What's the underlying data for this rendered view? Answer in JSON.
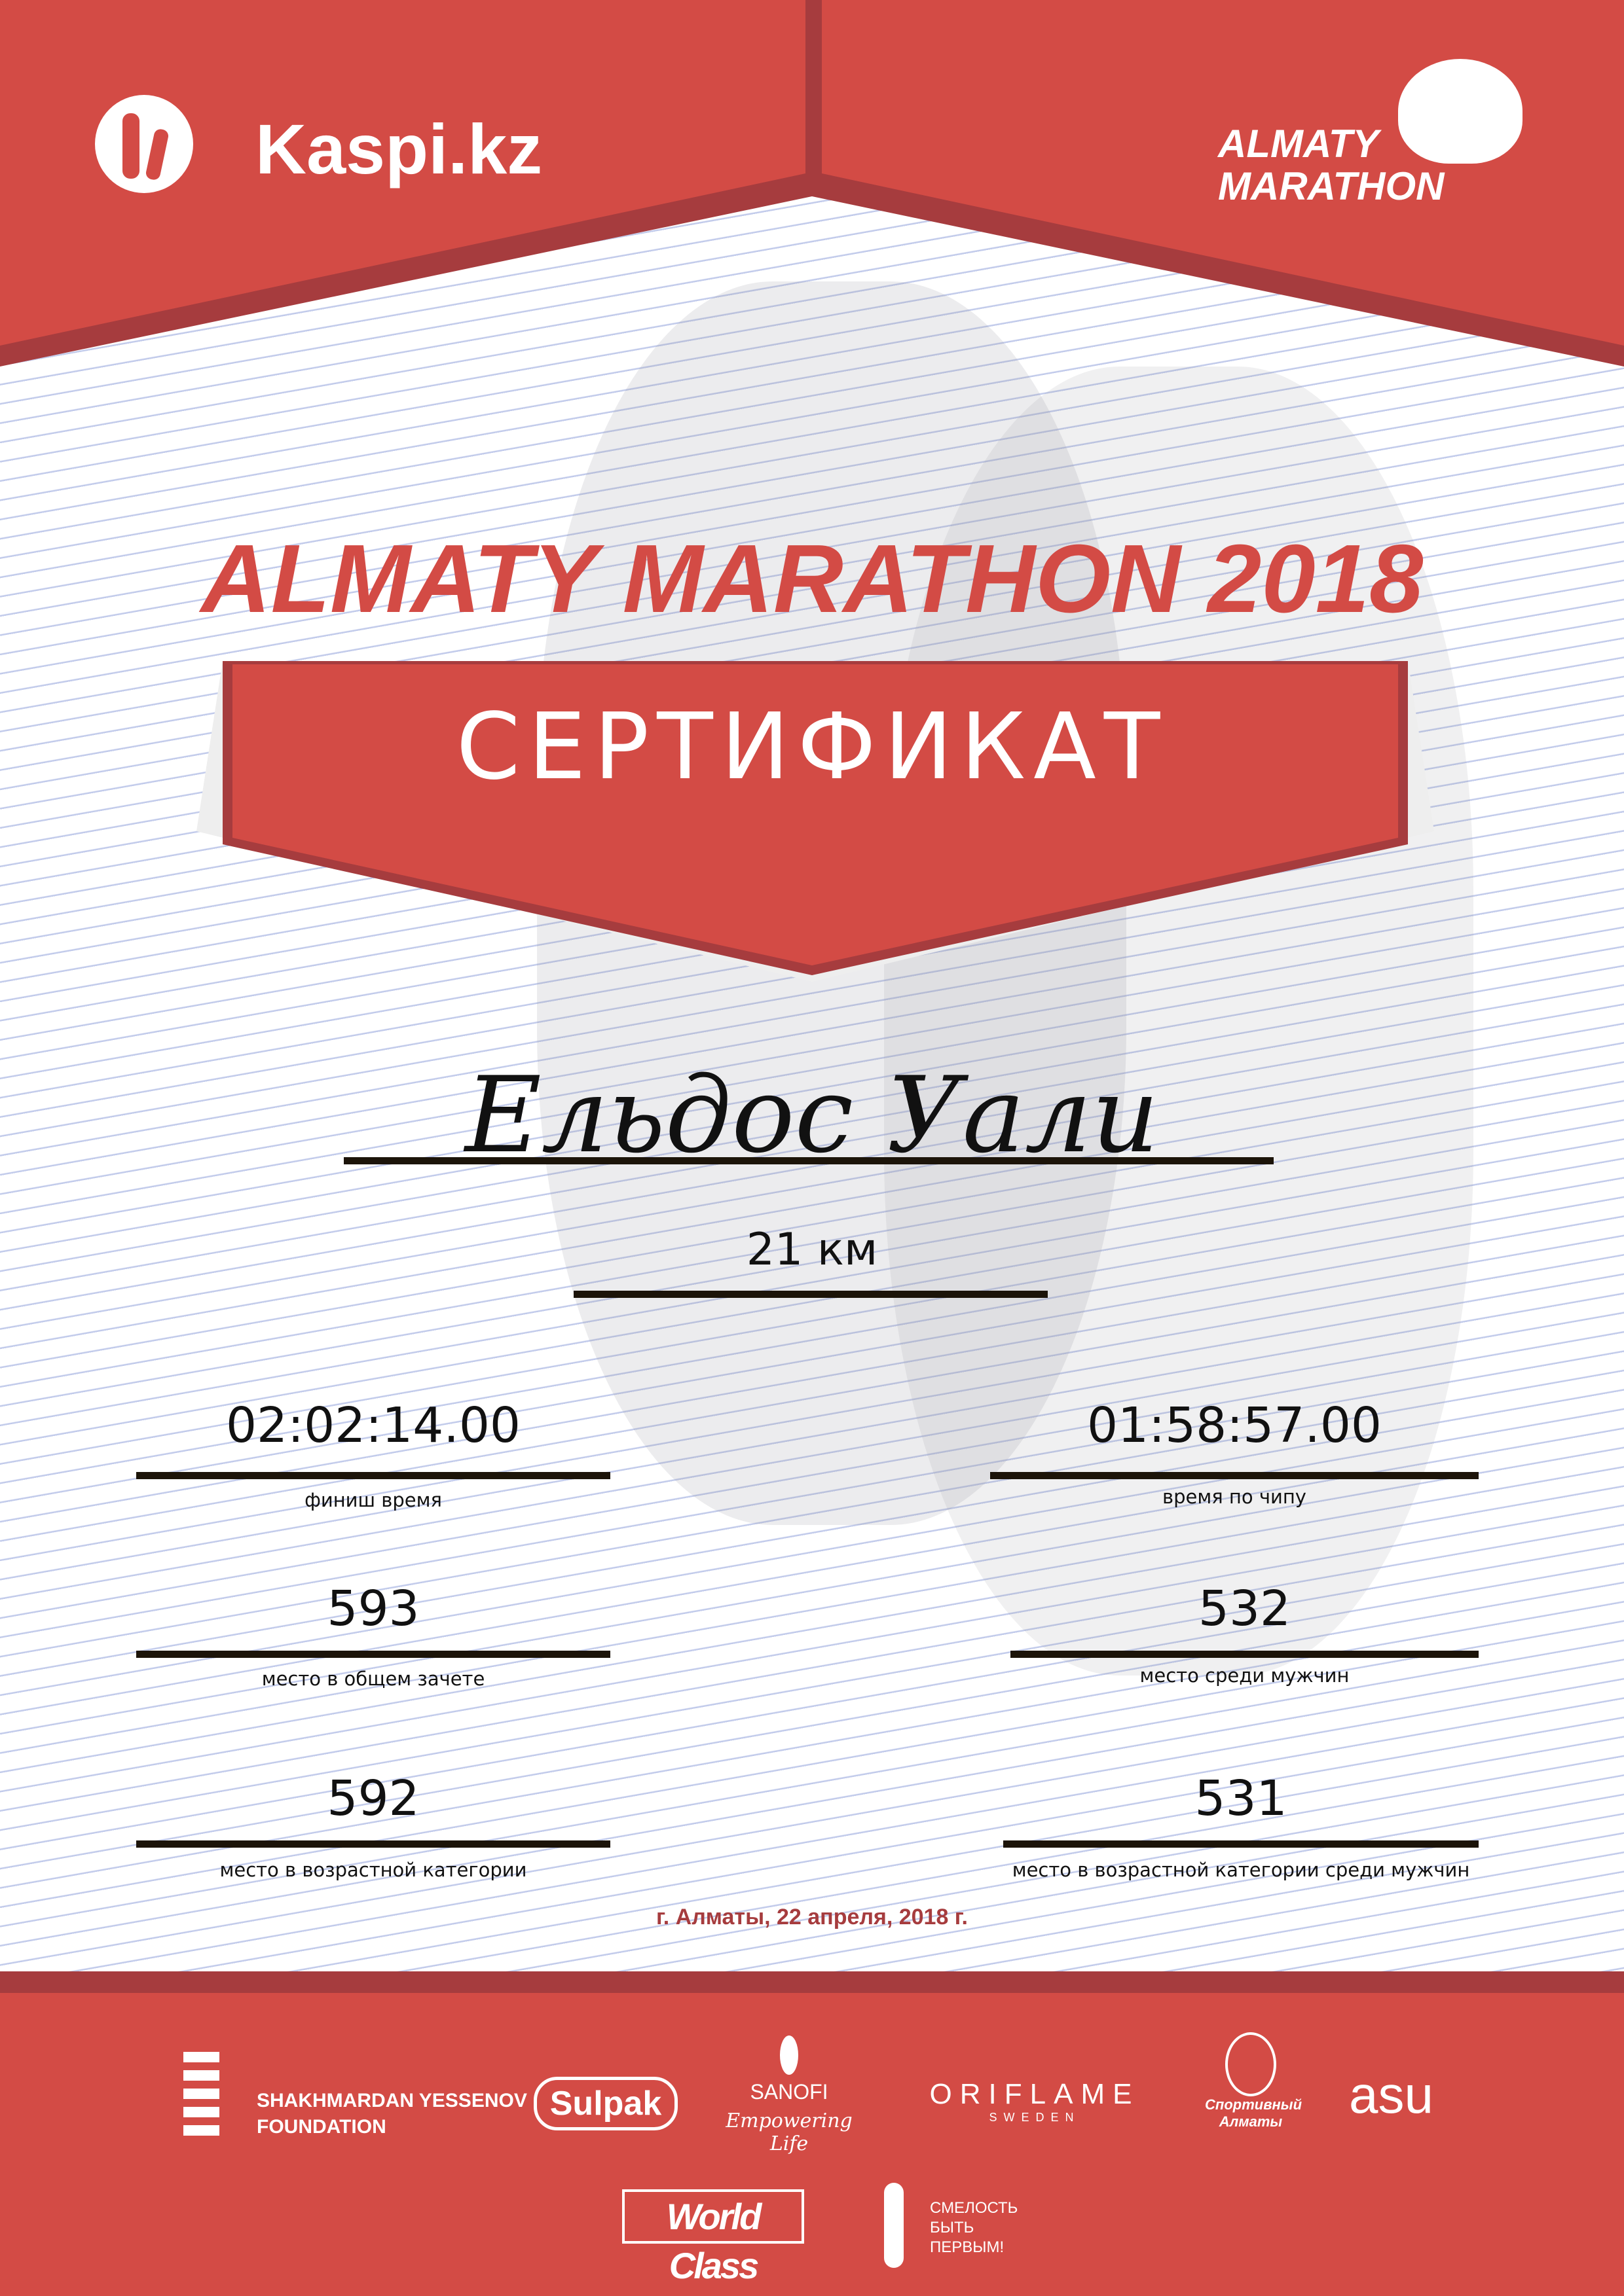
{
  "colors": {
    "brand_red": "#D34B45",
    "dark_red": "#A63C3E",
    "rule": "#1C1409"
  },
  "header": {
    "left_logo": "Kaspi.kz",
    "right_logo": [
      "ALMATY",
      "MARATHON"
    ]
  },
  "title": "ALMATY MARATHON 2018",
  "banner": "СЕРТИФИКАТ",
  "participant": {
    "name": "Ельдос Уали",
    "distance": "21 км"
  },
  "results": [
    {
      "value": "02:02:14.00",
      "label": "финиш время"
    },
    {
      "value": "01:58:57.00",
      "label": "время по чипу"
    },
    {
      "value": "593",
      "label": "место в общем зачете"
    },
    {
      "value": "532",
      "label": "место среди мужчин"
    },
    {
      "value": "592",
      "label": "место в возрастной категории"
    },
    {
      "value": "531",
      "label": "место в возрастной категории среди мужчин"
    }
  ],
  "date_place": "г. Алматы, 22 апреля, 2018 г.",
  "sponsors": {
    "yessenov": [
      "SHAKHMARDAN YESSENOV",
      "FOUNDATION"
    ],
    "sulpak": "Sulpak",
    "sanofi": [
      "SANOFI",
      "Empowering Life"
    ],
    "oriflame": [
      "ORIFLAME",
      "SWEDEN"
    ],
    "sport_almaty": [
      "Спортивный",
      "Алматы"
    ],
    "asu": "asu",
    "worldclass": "World Class",
    "fund": [
      "СМЕЛОСТЬ",
      "БЫТЬ",
      "ПЕРВЫМ!"
    ]
  }
}
